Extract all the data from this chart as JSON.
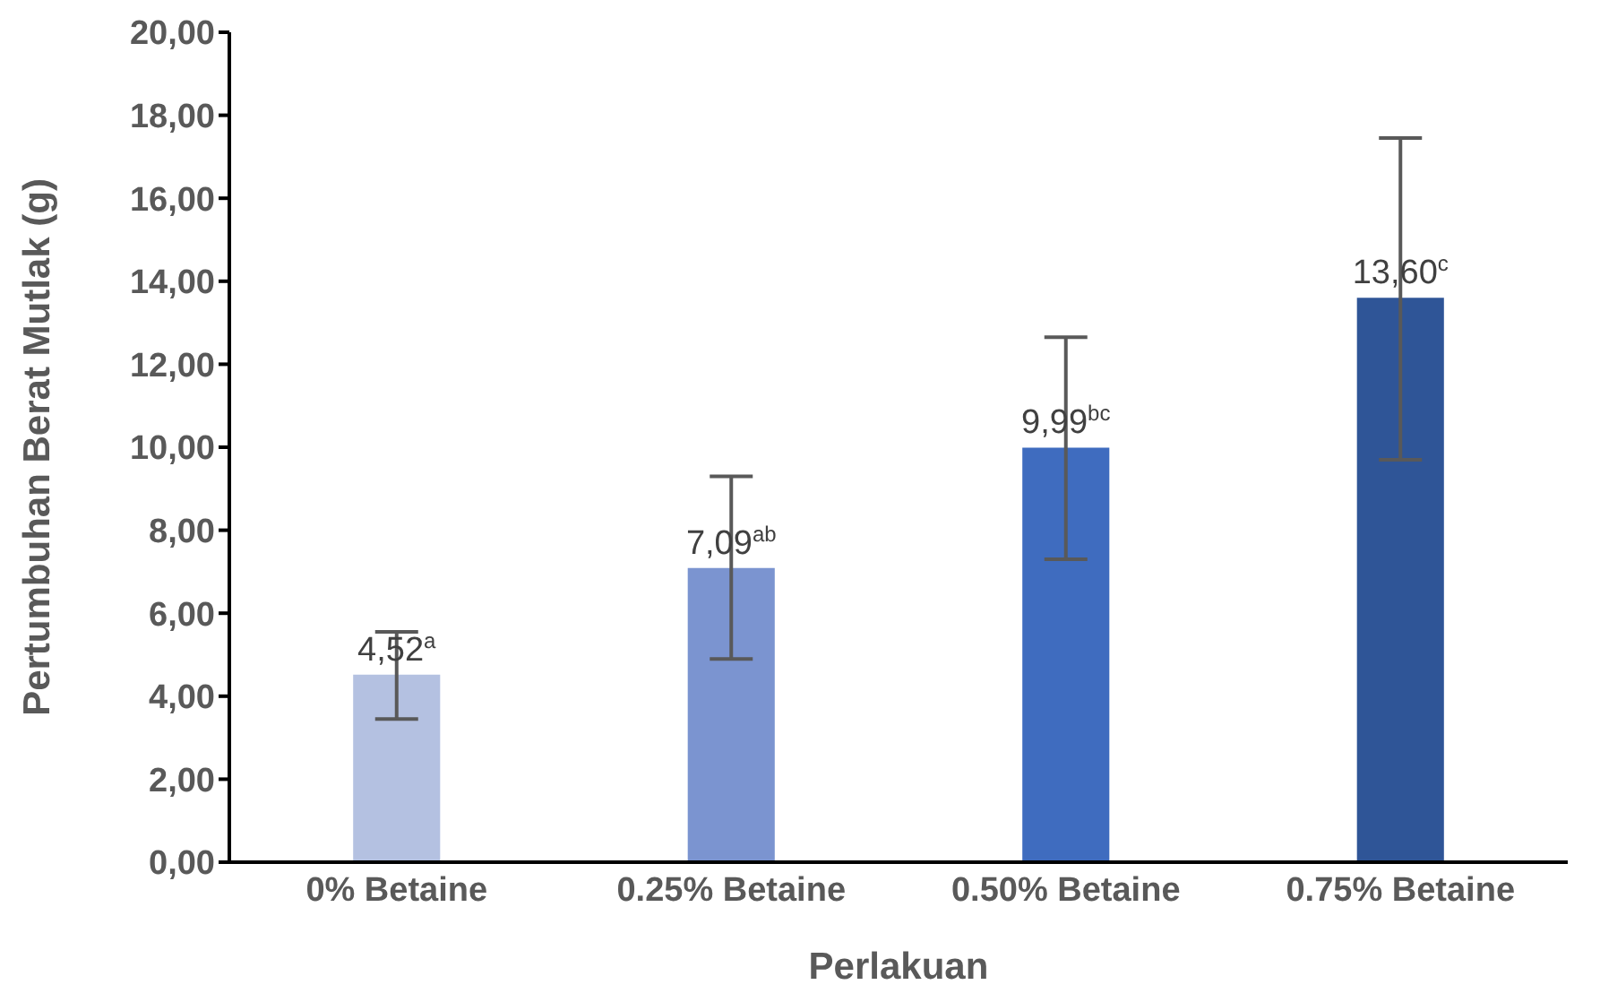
{
  "chart_data": {
    "type": "bar",
    "xlabel": "Perlakuan",
    "ylabel": "Pertumbuhan Berat Mutlak (g)",
    "categories": [
      "0% Betaine",
      "0.25% Betaine",
      "0.50% Betaine",
      "0.75% Betaine"
    ],
    "values": [
      4.52,
      7.09,
      9.99,
      13.6
    ],
    "colors": [
      "#b4c1e1",
      "#7b94d0",
      "#3f6cbf",
      "#2f5597"
    ],
    "errors": [
      [
        3.45,
        5.55
      ],
      [
        4.9,
        9.3
      ],
      [
        7.3,
        12.65
      ],
      [
        9.7,
        17.45
      ]
    ],
    "value_labels": [
      "4,52$^{a}$",
      "7,09$^{ab}$",
      "9,99$^{bc}$",
      "13,60$^{c}$"
    ],
    "ylim": [
      0,
      20
    ],
    "yticks": [
      {
        "value": 0,
        "label": "0,00"
      },
      {
        "value": 2,
        "label": "2,00"
      },
      {
        "value": 4,
        "label": "4,00"
      },
      {
        "value": 6,
        "label": "6,00"
      },
      {
        "value": 8,
        "label": "8,00"
      },
      {
        "value": 10,
        "label": "10,00"
      },
      {
        "value": 12,
        "label": "12,00"
      },
      {
        "value": 14,
        "label": "14,00"
      },
      {
        "value": 16,
        "label": "16,00"
      },
      {
        "value": 18,
        "label": "18,00"
      },
      {
        "value": 20,
        "label": "20,00"
      }
    ],
    "grid": false,
    "legend": false
  }
}
